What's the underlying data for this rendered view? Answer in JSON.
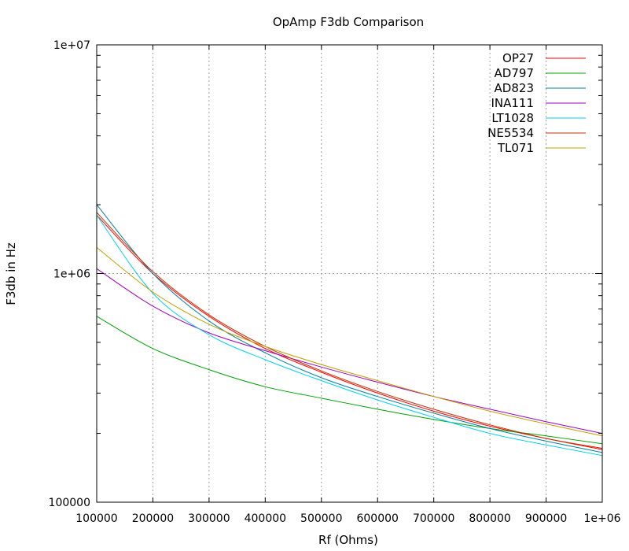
{
  "chart_data": {
    "type": "line",
    "title": "OpAmp F3db Comparison",
    "xlabel": "Rf (Ohms)",
    "ylabel": "F3db in Hz",
    "xlim": [
      100000,
      1000000
    ],
    "ylim": [
      100000,
      10000000
    ],
    "yscale": "log",
    "grid": true,
    "legend_position": "top-right",
    "x_ticks": [
      100000,
      200000,
      300000,
      400000,
      500000,
      600000,
      700000,
      800000,
      900000,
      1000000
    ],
    "x_tick_labels": [
      "100000",
      "200000",
      "300000",
      "400000",
      "500000",
      "600000",
      "700000",
      "800000",
      "900000",
      "1e+06"
    ],
    "y_ticks": [
      100000,
      1000000,
      10000000
    ],
    "y_tick_labels": [
      "100000",
      "1e+06",
      "1e+07"
    ],
    "x": [
      100000,
      200000,
      300000,
      400000,
      500000,
      600000,
      700000,
      800000,
      900000,
      1000000
    ],
    "series": [
      {
        "name": "OP27",
        "color": "#ff0000",
        "values": [
          1800000,
          1000000,
          650000,
          470000,
          370000,
          300000,
          250000,
          215000,
          190000,
          170000
        ]
      },
      {
        "name": "AD797",
        "color": "#00a000",
        "values": [
          650000,
          470000,
          380000,
          320000,
          285000,
          255000,
          230000,
          210000,
          195000,
          180000
        ]
      },
      {
        "name": "AD823",
        "color": "#0080a0",
        "values": [
          2000000,
          1000000,
          620000,
          450000,
          350000,
          290000,
          245000,
          210000,
          185000,
          165000
        ]
      },
      {
        "name": "INA111",
        "color": "#a000c0",
        "values": [
          1050000,
          720000,
          550000,
          460000,
          390000,
          335000,
          290000,
          255000,
          225000,
          200000
        ]
      },
      {
        "name": "LT1028",
        "color": "#00d0f0",
        "values": [
          1800000,
          820000,
          540000,
          420000,
          340000,
          280000,
          235000,
          200000,
          178000,
          160000
        ]
      },
      {
        "name": "NE5534",
        "color": "#c03000",
        "values": [
          1850000,
          1020000,
          660000,
          480000,
          375000,
          305000,
          255000,
          218000,
          190000,
          172000
        ]
      },
      {
        "name": "TL071",
        "color": "#c0a000",
        "values": [
          1300000,
          830000,
          600000,
          480000,
          400000,
          340000,
          290000,
          250000,
          220000,
          195000
        ]
      }
    ]
  }
}
